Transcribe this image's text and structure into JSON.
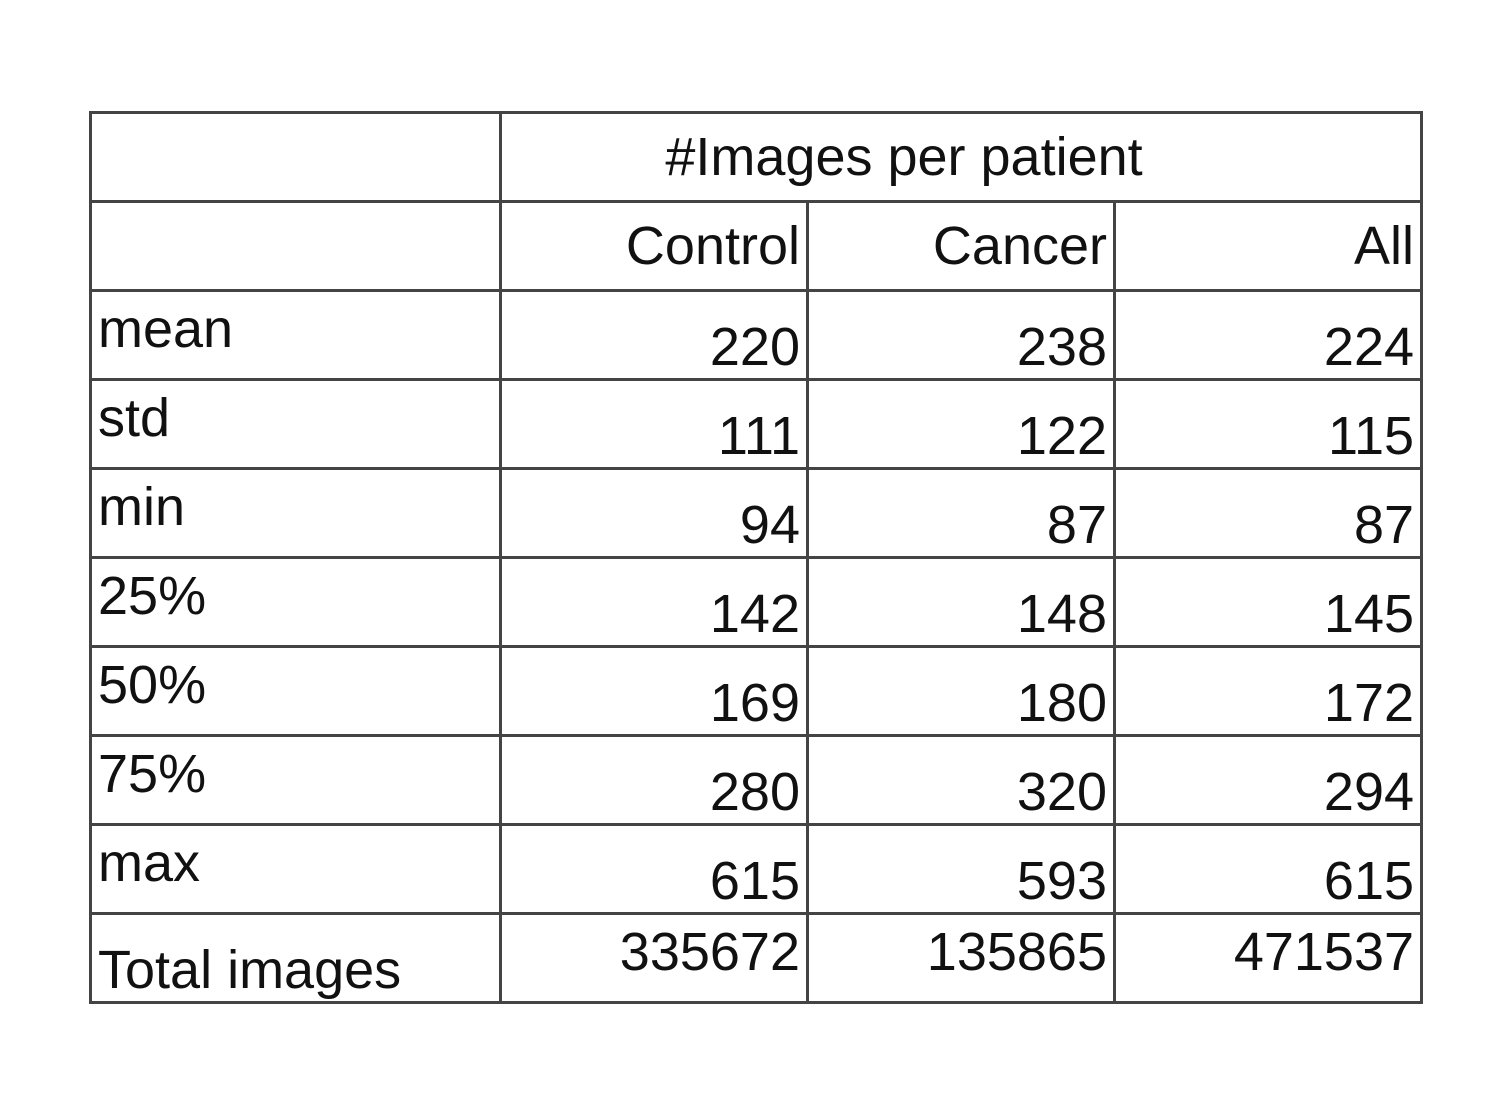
{
  "table": {
    "group_header": "#Images per patient",
    "columns": [
      "Control",
      "Cancer",
      "All"
    ],
    "rows": [
      {
        "label": "mean",
        "values": [
          "220",
          "238",
          "224"
        ]
      },
      {
        "label": "std",
        "values": [
          "111",
          "122",
          "115"
        ]
      },
      {
        "label": "min",
        "values": [
          "94",
          "87",
          "87"
        ]
      },
      {
        "label": "25%",
        "values": [
          "142",
          "148",
          "145"
        ]
      },
      {
        "label": "50%",
        "values": [
          "169",
          "180",
          "172"
        ]
      },
      {
        "label": "75%",
        "values": [
          "280",
          "320",
          "294"
        ]
      },
      {
        "label": "max",
        "values": [
          "615",
          "593",
          "615"
        ]
      },
      {
        "label": "Total images",
        "values": [
          "335672",
          "135865",
          "471537"
        ]
      }
    ]
  }
}
